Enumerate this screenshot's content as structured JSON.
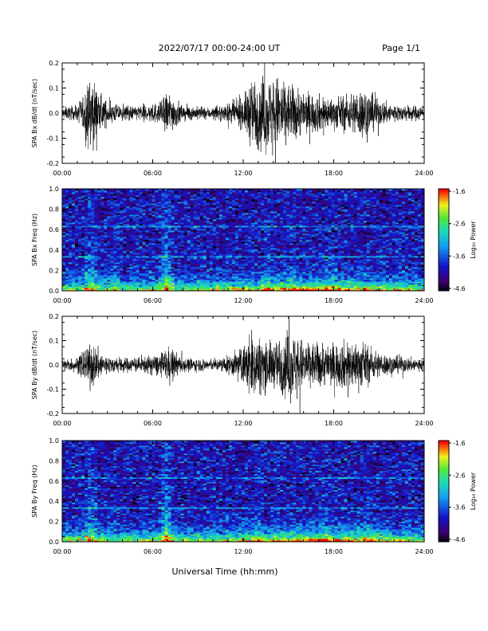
{
  "header": {
    "title": "2022/07/17  00:00-24:00 UT",
    "page": "Page 1/1"
  },
  "xlabel": "Universal Time (hh:mm)",
  "chart_data": [
    {
      "type": "line",
      "title": "",
      "ylabel": "SPA Bx dB/dt (nT/sec)",
      "xticks": [
        "00:00",
        "06:00",
        "12:00",
        "18:00",
        "24:00"
      ],
      "yticks": [
        "-0.2",
        "-0.1",
        "0.0",
        "0.1",
        "0.2"
      ],
      "xlim": [
        0,
        24
      ],
      "ylim": [
        -0.2,
        0.2
      ],
      "series": [
        {
          "color": "#000000",
          "envelope_hours": [
            0,
            1,
            1.5,
            2,
            2.5,
            3,
            4,
            5,
            6.5,
            7,
            8,
            10,
            11,
            12,
            12.5,
            13,
            14,
            14.5,
            15,
            16,
            17,
            18,
            19,
            20,
            21,
            22,
            23,
            24
          ],
          "envelope_amplitude": [
            0.03,
            0.04,
            0.12,
            0.2,
            0.1,
            0.06,
            0.04,
            0.04,
            0.06,
            0.12,
            0.04,
            0.03,
            0.05,
            0.08,
            0.18,
            0.2,
            0.2,
            0.2,
            0.16,
            0.12,
            0.1,
            0.08,
            0.1,
            0.14,
            0.07,
            0.05,
            0.04,
            0.04
          ]
        }
      ]
    },
    {
      "type": "heatmap",
      "title": "",
      "ylabel": "SPA Bx Freq (Hz)",
      "colorbar_label": "Log₁₀ Power",
      "colorbar_ticks": [
        "-1.6",
        "-2.6",
        "-3.6",
        "-4.6"
      ],
      "clim": [
        -4.6,
        -1.6
      ],
      "xticks": [
        "00:00",
        "06:00",
        "12:00",
        "18:00",
        "24:00"
      ],
      "yticks": [
        "0.0",
        "0.2",
        "0.4",
        "0.6",
        "0.8",
        "1.0"
      ],
      "xlim": [
        0,
        24
      ],
      "ylim": [
        0,
        1.0
      ],
      "line_frequencies_hz": [
        0.63,
        0.33
      ]
    },
    {
      "type": "line",
      "title": "",
      "ylabel": "SPA By dB/dt (nT/sec)",
      "xticks": [
        "00:00",
        "06:00",
        "12:00",
        "18:00",
        "24:00"
      ],
      "yticks": [
        "-0.2",
        "-0.1",
        "0.0",
        "0.1",
        "0.2"
      ],
      "xlim": [
        0,
        24
      ],
      "ylim": [
        -0.2,
        0.2
      ],
      "series": [
        {
          "color": "#000000",
          "envelope_hours": [
            0,
            1,
            1.5,
            2,
            2.5,
            3,
            4,
            5,
            6.5,
            7,
            8,
            10,
            11,
            12,
            12.5,
            13,
            14,
            15,
            16,
            17,
            18,
            19,
            20,
            21,
            22,
            23,
            24
          ],
          "envelope_amplitude": [
            0.03,
            0.04,
            0.1,
            0.12,
            0.08,
            0.05,
            0.04,
            0.04,
            0.06,
            0.1,
            0.04,
            0.03,
            0.05,
            0.1,
            0.2,
            0.16,
            0.12,
            0.2,
            0.14,
            0.12,
            0.12,
            0.14,
            0.12,
            0.07,
            0.05,
            0.04,
            0.04
          ]
        }
      ]
    },
    {
      "type": "heatmap",
      "title": "",
      "ylabel": "SPA By Freq (Hz)",
      "colorbar_label": "Log₁₀ Power",
      "colorbar_ticks": [
        "-1.6",
        "-2.6",
        "-3.6",
        "-4.6"
      ],
      "clim": [
        -4.6,
        -1.6
      ],
      "xticks": [
        "00:00",
        "06:00",
        "12:00",
        "18:00",
        "24:00"
      ],
      "yticks": [
        "0.0",
        "0.2",
        "0.4",
        "0.6",
        "0.8",
        "1.0"
      ],
      "xlim": [
        0,
        24
      ],
      "ylim": [
        0,
        1.0
      ],
      "line_frequencies_hz": [
        0.63,
        0.33
      ]
    }
  ]
}
